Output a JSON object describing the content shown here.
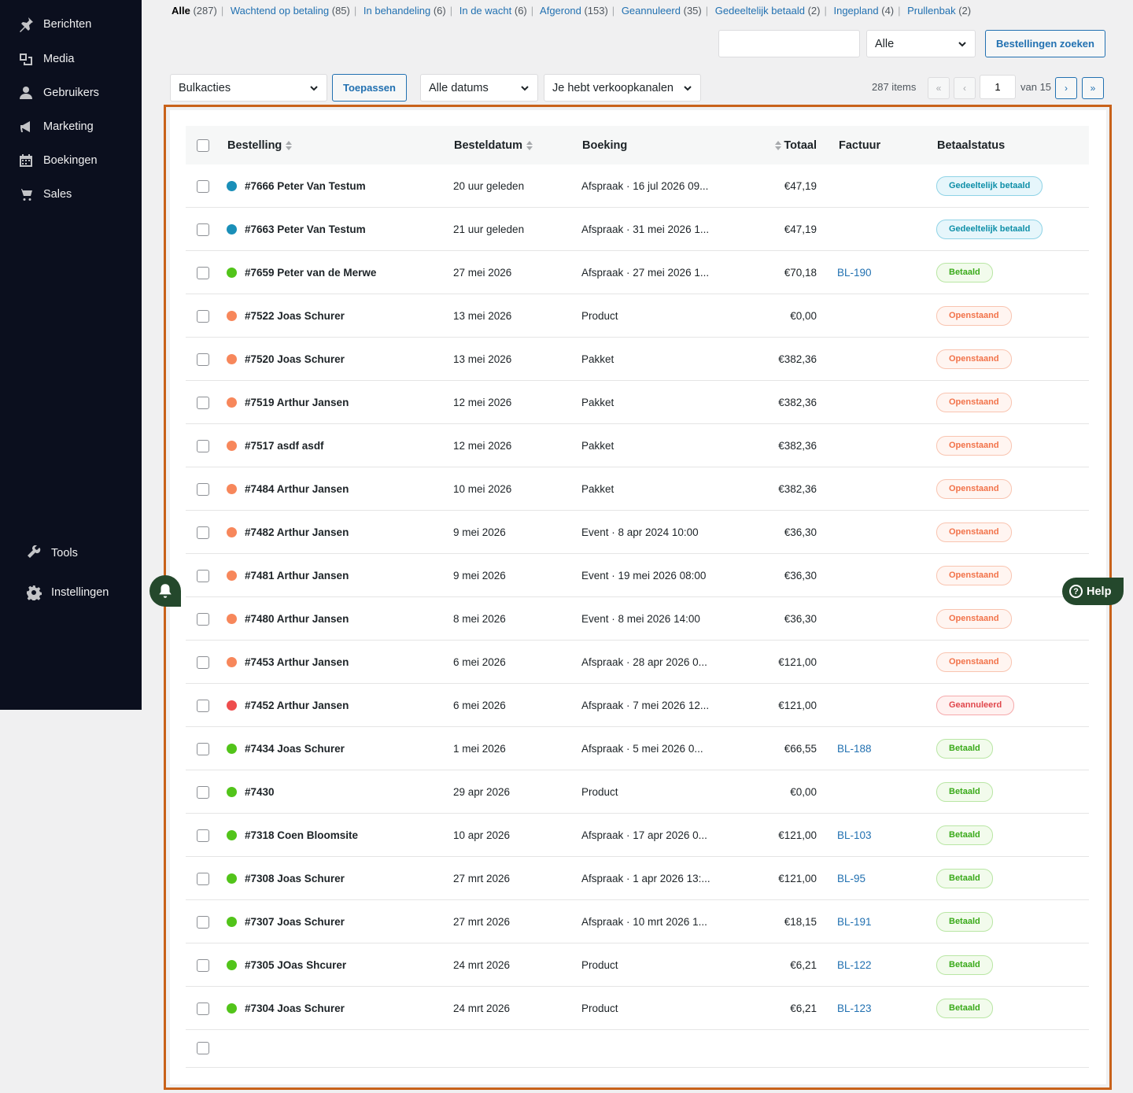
{
  "sidebar": {
    "items": [
      {
        "label": "Berichten",
        "icon": "pin-icon"
      },
      {
        "label": "Media",
        "icon": "media-icon"
      },
      {
        "label": "Gebruikers",
        "icon": "user-icon"
      },
      {
        "label": "Marketing",
        "icon": "megaphone-icon"
      },
      {
        "label": "Boekingen",
        "icon": "calendar-icon"
      },
      {
        "label": "Sales",
        "icon": "cart-icon"
      }
    ],
    "bottom_items": [
      {
        "label": "Tools",
        "icon": "wrench-icon"
      },
      {
        "label": "Instellingen",
        "icon": "gear-icon"
      }
    ]
  },
  "filters": [
    {
      "label": "Alle",
      "count": "(287)",
      "current": true
    },
    {
      "label": "Wachtend op betaling",
      "count": "(85)"
    },
    {
      "label": "In behandeling",
      "count": "(6)"
    },
    {
      "label": "In de wacht",
      "count": "(6)"
    },
    {
      "label": "Afgerond",
      "count": "(153)"
    },
    {
      "label": "Geannuleerd",
      "count": "(35)"
    },
    {
      "label": "Gedeeltelijk betaald",
      "count": "(2)"
    },
    {
      "label": "Ingepland",
      "count": "(4)"
    },
    {
      "label": "Prullenbak",
      "count": "(2)"
    }
  ],
  "search": {
    "value": "",
    "type_select": "Alle",
    "button": "Bestellingen zoeken"
  },
  "toolbar": {
    "bulk_select": "Bulkacties",
    "apply_button": "Toepassen",
    "dates_select": "Alle datums",
    "channels_select": "Je hebt verkoopkanalen"
  },
  "pagination": {
    "items": "287 items",
    "first": "«",
    "prev": "‹",
    "current_page": "1",
    "of": "van 15",
    "next": "›",
    "last": "»"
  },
  "table": {
    "headers": {
      "order": "Bestelling",
      "date": "Besteldatum",
      "booking": "Boeking",
      "total": "Totaal",
      "invoice": "Factuur",
      "status": "Betaalstatus"
    },
    "rows": [
      {
        "order": "#7666 Peter Van Testum",
        "dot": "#1a8fb8",
        "date": "20 uur geleden",
        "booking": "Afspraak · 16 jul 2026 09...",
        "total": "€47,19",
        "invoice": "",
        "status": "Gedeeltelijk betaald",
        "status_kind": "partial"
      },
      {
        "order": "#7663 Peter Van Testum",
        "dot": "#1a8fb8",
        "date": "21 uur geleden",
        "booking": "Afspraak · 31 mei 2026 1...",
        "total": "€47,19",
        "invoice": "",
        "status": "Gedeeltelijk betaald",
        "status_kind": "partial"
      },
      {
        "order": "#7659 Peter van de Merwe",
        "dot": "#52c41a",
        "date": "27 mei 2026",
        "booking": "Afspraak · 27 mei 2026 1...",
        "total": "€70,18",
        "invoice": "BL-190",
        "status": "Betaald",
        "status_kind": "paid"
      },
      {
        "order": "#7522 Joas Schurer",
        "dot": "#f7875b",
        "date": "13 mei 2026",
        "booking": "Product",
        "total": "€0,00",
        "invoice": "",
        "status": "Openstaand",
        "status_kind": "open"
      },
      {
        "order": "#7520 Joas Schurer",
        "dot": "#f7875b",
        "date": "13 mei 2026",
        "booking": "Pakket",
        "total": "€382,36",
        "invoice": "",
        "status": "Openstaand",
        "status_kind": "open"
      },
      {
        "order": "#7519 Arthur Jansen",
        "dot": "#f7875b",
        "date": "12 mei 2026",
        "booking": "Pakket",
        "total": "€382,36",
        "invoice": "",
        "status": "Openstaand",
        "status_kind": "open"
      },
      {
        "order": "#7517 asdf asdf",
        "dot": "#f7875b",
        "date": "12 mei 2026",
        "booking": "Pakket",
        "total": "€382,36",
        "invoice": "",
        "status": "Openstaand",
        "status_kind": "open"
      },
      {
        "order": "#7484 Arthur Jansen",
        "dot": "#f7875b",
        "date": "10 mei 2026",
        "booking": "Pakket",
        "total": "€382,36",
        "invoice": "",
        "status": "Openstaand",
        "status_kind": "open"
      },
      {
        "order": "#7482 Arthur Jansen",
        "dot": "#f7875b",
        "date": "9 mei 2026",
        "booking": "Event · 8 apr 2024 10:00",
        "total": "€36,30",
        "invoice": "",
        "status": "Openstaand",
        "status_kind": "open"
      },
      {
        "order": "#7481 Arthur Jansen",
        "dot": "#f7875b",
        "date": "9 mei 2026",
        "booking": "Event · 19 mei 2026 08:00",
        "total": "€36,30",
        "invoice": "",
        "status": "Openstaand",
        "status_kind": "open"
      },
      {
        "order": "#7480 Arthur Jansen",
        "dot": "#f7875b",
        "date": "8 mei 2026",
        "booking": "Event · 8 mei 2026 14:00",
        "total": "€36,30",
        "invoice": "",
        "status": "Openstaand",
        "status_kind": "open"
      },
      {
        "order": "#7453 Arthur Jansen",
        "dot": "#f7875b",
        "date": "6 mei 2026",
        "booking": "Afspraak · 28 apr 2026 0...",
        "total": "€121,00",
        "invoice": "",
        "status": "Openstaand",
        "status_kind": "open"
      },
      {
        "order": "#7452 Arthur Jansen",
        "dot": "#ee4d4d",
        "date": "6 mei 2026",
        "booking": "Afspraak · 7 mei 2026 12...",
        "total": "€121,00",
        "invoice": "",
        "status": "Geannuleerd",
        "status_kind": "cancelled"
      },
      {
        "order": "#7434 Joas Schurer",
        "dot": "#52c41a",
        "date": "1 mei 2026",
        "booking": "Afspraak · 5 mei 2026 0...",
        "total": "€66,55",
        "invoice": "BL-188",
        "status": "Betaald",
        "status_kind": "paid"
      },
      {
        "order": "#7430",
        "dot": "#52c41a",
        "date": "29 apr 2026",
        "booking": "Product",
        "total": "€0,00",
        "invoice": "",
        "status": "Betaald",
        "status_kind": "paid"
      },
      {
        "order": "#7318 Coen Bloomsite",
        "dot": "#52c41a",
        "date": "10 apr 2026",
        "booking": "Afspraak · 17 apr 2026 0...",
        "total": "€121,00",
        "invoice": "BL-103",
        "status": "Betaald",
        "status_kind": "paid"
      },
      {
        "order": "#7308 Joas Schurer",
        "dot": "#52c41a",
        "date": "27 mrt 2026",
        "booking": "Afspraak · 1 apr 2026 13:...",
        "total": "€121,00",
        "invoice": "BL-95",
        "status": "Betaald",
        "status_kind": "paid"
      },
      {
        "order": "#7307 Joas Schurer",
        "dot": "#52c41a",
        "date": "27 mrt 2026",
        "booking": "Afspraak · 10 mrt 2026 1...",
        "total": "€18,15",
        "invoice": "BL-191",
        "status": "Betaald",
        "status_kind": "paid"
      },
      {
        "order": "#7305 JOas Shcurer",
        "dot": "#52c41a",
        "date": "24 mrt 2026",
        "booking": "Product",
        "total": "€6,21",
        "invoice": "BL-122",
        "status": "Betaald",
        "status_kind": "paid"
      },
      {
        "order": "#7304 Joas Schurer",
        "dot": "#52c41a",
        "date": "24 mrt 2026",
        "booking": "Product",
        "total": "€6,21",
        "invoice": "BL-123",
        "status": "Betaald",
        "status_kind": "paid"
      }
    ]
  },
  "status_styles": {
    "partial": {
      "color": "#0e8fa8",
      "bg": "#e6f6fb",
      "border": "#8fd3e6"
    },
    "paid": {
      "color": "#3aaa1a",
      "bg": "#f2fbec",
      "border": "#b9e6a4"
    },
    "open": {
      "color": "#f2734a",
      "bg": "#fff5f1",
      "border": "#f9c4b0"
    },
    "cancelled": {
      "color": "#e0474c",
      "bg": "#fff1f0",
      "border": "#f5a9ab"
    }
  },
  "help": {
    "label": "Help"
  }
}
